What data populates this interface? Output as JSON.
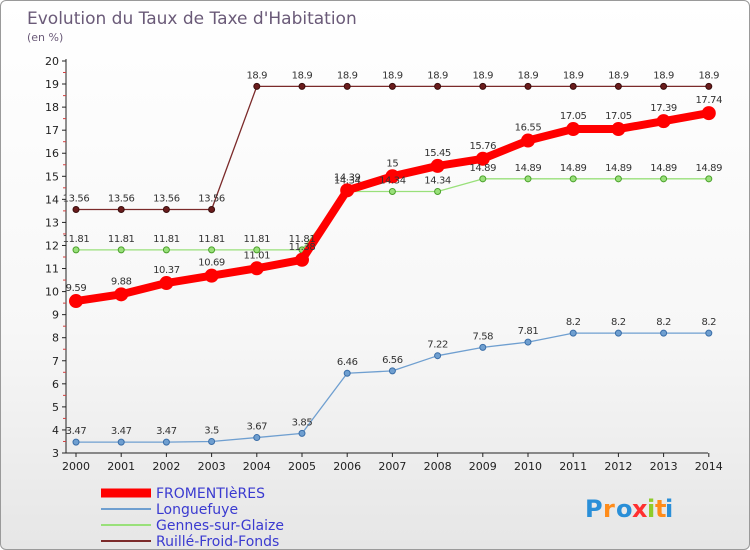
{
  "chart_data": {
    "type": "line",
    "title": "Evolution du Taux de Taxe d'Habitation",
    "subtitle": "(en %)",
    "x": [
      "2000",
      "2001",
      "2002",
      "2003",
      "2004",
      "2005",
      "2006",
      "2007",
      "2008",
      "2009",
      "2010",
      "2011",
      "2012",
      "2013",
      "2014"
    ],
    "ylim": [
      3,
      20
    ],
    "yticks": [
      3,
      4,
      5,
      6,
      7,
      8,
      9,
      10,
      11,
      12,
      13,
      14,
      15,
      16,
      17,
      18,
      19,
      20
    ],
    "grid": false,
    "legend_position": "bottom-left",
    "series": [
      {
        "name": "Ruillé-Froid-Fonds",
        "color": "#7b2a2a",
        "values": [
          13.56,
          13.56,
          13.56,
          13.56,
          18.9,
          18.9,
          18.9,
          18.9,
          18.9,
          18.9,
          18.9,
          18.9,
          18.9,
          18.9,
          18.9
        ],
        "labels": [
          "13.56",
          "13.56",
          "13.56",
          "13.56",
          "18.9",
          "18.9",
          "18.9",
          "18.9",
          "18.9",
          "18.9",
          "18.9",
          "18.9",
          "18.9",
          "18.9",
          "18.9"
        ]
      },
      {
        "name": "Gennes-sur-Glaize",
        "color": "#99e07a",
        "values": [
          11.81,
          11.81,
          11.81,
          11.81,
          11.81,
          11.81,
          14.34,
          14.34,
          14.34,
          14.89,
          14.89,
          14.89,
          14.89,
          14.89,
          14.89
        ],
        "labels": [
          "11.81",
          "11.81",
          "11.81",
          "11.81",
          "11.81",
          "11.81",
          "14.34",
          "14.34",
          "14.34",
          "14.89",
          "14.89",
          "14.89",
          "14.89",
          "14.89",
          "14.89"
        ]
      },
      {
        "name": "Longuefuye",
        "color": "#6f9fd0",
        "values": [
          3.47,
          3.47,
          3.47,
          3.5,
          3.67,
          3.85,
          6.46,
          6.56,
          7.22,
          7.58,
          7.81,
          8.2,
          8.2,
          8.2,
          8.2
        ],
        "labels": [
          "3.47",
          "3.47",
          "3.47",
          "3.5",
          "3.67",
          "3.85",
          "6.46",
          "6.56",
          "7.22",
          "7.58",
          "7.81",
          "8.2",
          "8.2",
          "8.2",
          "8.2"
        ]
      },
      {
        "name": "FROMENTIèRES",
        "color": "#ff0000",
        "values": [
          9.59,
          9.88,
          10.37,
          10.69,
          11.01,
          11.38,
          14.39,
          15,
          15.45,
          15.76,
          16.55,
          17.05,
          17.05,
          17.39,
          17.74
        ],
        "labels": [
          "9.59",
          "9.88",
          "10.37",
          "10.69",
          "11.01",
          "11.38",
          "14.39",
          "15",
          "15.45",
          "15.76",
          "16.55",
          "17.05",
          "17.05",
          "17.39",
          "17.74"
        ]
      }
    ],
    "legend_order": [
      "FROMENTIèRES",
      "Longuefuye",
      "Gennes-sur-Glaize",
      "Ruillé-Froid-Fonds"
    ]
  },
  "logo": {
    "text": "Proxiti",
    "letter_colors": [
      "#2a8fd8",
      "#ff8c1a",
      "#2a8fd8",
      "#ff3030",
      "#8fcc2a",
      "#ff8c1a",
      "#2a8fd8"
    ]
  }
}
